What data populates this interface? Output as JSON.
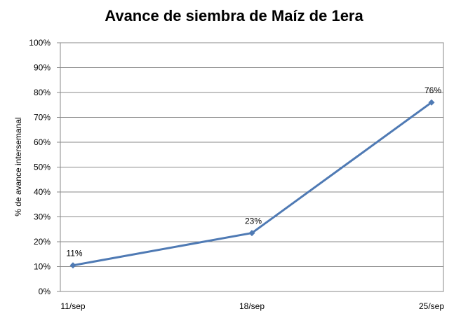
{
  "chart_data": {
    "type": "line",
    "title": "Avance de siembra de Maíz de 1era",
    "xlabel": "",
    "ylabel": "% de avance intersemanal",
    "categories": [
      "11/sep",
      "18/sep",
      "25/sep"
    ],
    "series": [
      {
        "values": [
          10.5,
          23.5,
          76
        ],
        "labels": [
          "11%",
          "23%",
          "76%"
        ]
      }
    ],
    "ylim": [
      0,
      100
    ],
    "yticks": [
      "0%",
      "10%",
      "20%",
      "30%",
      "40%",
      "50%",
      "60%",
      "70%",
      "80%",
      "90%",
      "100%"
    ],
    "grid": true,
    "legend": "none",
    "colors": {
      "line": "#4f7ab4",
      "grid": "#8a8a8a",
      "frame": "#8a8a8a"
    }
  }
}
